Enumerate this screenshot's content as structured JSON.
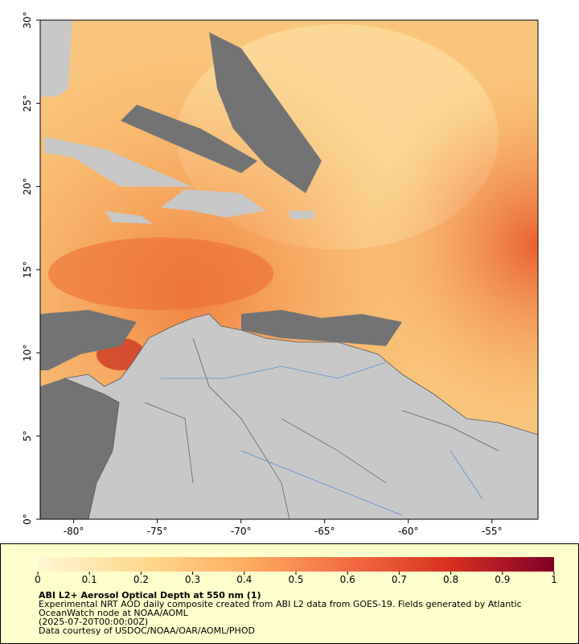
{
  "map": {
    "xlim": [
      -82,
      -52.25
    ],
    "ylim": [
      0,
      30
    ],
    "xticks": [
      {
        "value": -80,
        "label": "-80°"
      },
      {
        "value": -75,
        "label": "-75°"
      },
      {
        "value": -70,
        "label": "-70°"
      },
      {
        "value": -65,
        "label": "-65°"
      },
      {
        "value": -60,
        "label": "-60°"
      },
      {
        "value": -55,
        "label": "-55°"
      }
    ],
    "yticks": [
      {
        "value": 0,
        "label": "0°"
      },
      {
        "value": 5,
        "label": "5°"
      },
      {
        "value": 10,
        "label": "10°"
      },
      {
        "value": 15,
        "label": "15°"
      },
      {
        "value": 20,
        "label": "20°"
      },
      {
        "value": 25,
        "label": "25°"
      },
      {
        "value": 30,
        "label": "30°"
      }
    ]
  },
  "colorbar": {
    "range": [
      0,
      1
    ],
    "ticks": [
      0,
      0.1,
      0.2,
      0.3,
      0.4,
      0.5,
      0.6,
      0.7,
      0.8,
      0.9,
      1
    ]
  },
  "caption": {
    "title": "ABI L2+ Aerosol Optical Depth at 550 nm (1)",
    "lines": [
      "Experimental NRT AOD daily composite created from ABI L2 data from GOES-19. Fields generated by Atlantic",
      "OceanWatch node at NOAA/AOML",
      "(2025-07-20T00:00:00Z)",
      "Data courtesy of USDOC/NOAA/OAR/AOML/PHOD"
    ]
  }
}
